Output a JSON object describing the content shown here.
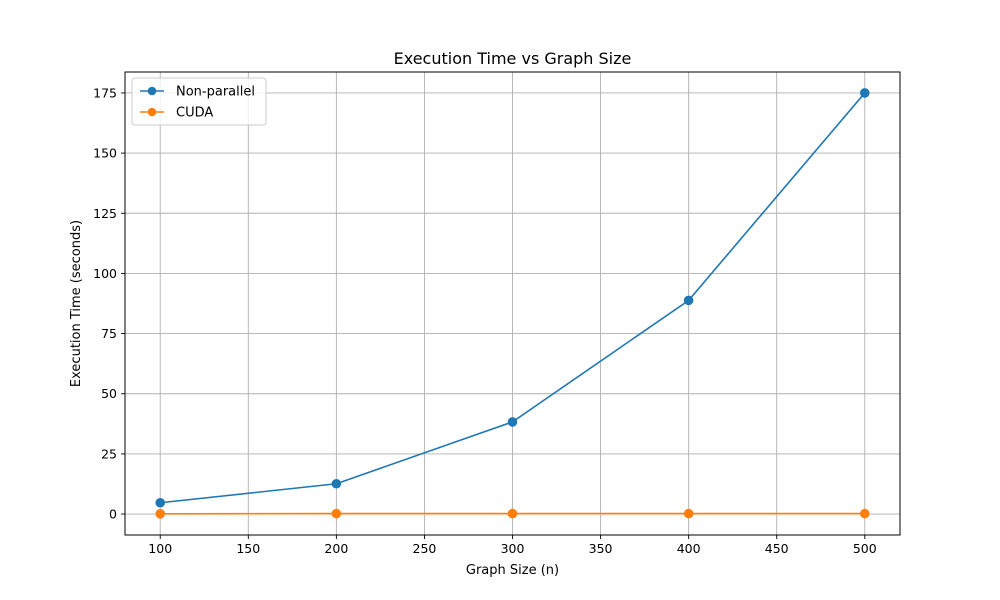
{
  "chart_data": {
    "type": "line",
    "title": "Execution Time vs Graph Size",
    "xlabel": "Graph Size (n)",
    "ylabel": "Execution Time (seconds)",
    "x": [
      100,
      200,
      300,
      400,
      500
    ],
    "xlim": [
      80,
      520
    ],
    "ylim": [
      -8.7,
      183.7
    ],
    "xticks": [
      100,
      150,
      200,
      250,
      300,
      350,
      400,
      450,
      500
    ],
    "yticks": [
      0,
      25,
      50,
      75,
      100,
      125,
      150,
      175
    ],
    "grid": true,
    "legend_position": "top-left",
    "series": [
      {
        "name": "Non-parallel",
        "color": "#1f77b4",
        "marker": "circle",
        "values": [
          4.7,
          12.6,
          38.3,
          88.8,
          175.0
        ]
      },
      {
        "name": "CUDA",
        "color": "#ff7f0e",
        "marker": "circle",
        "values": [
          0.1,
          0.2,
          0.2,
          0.2,
          0.2
        ]
      }
    ]
  }
}
